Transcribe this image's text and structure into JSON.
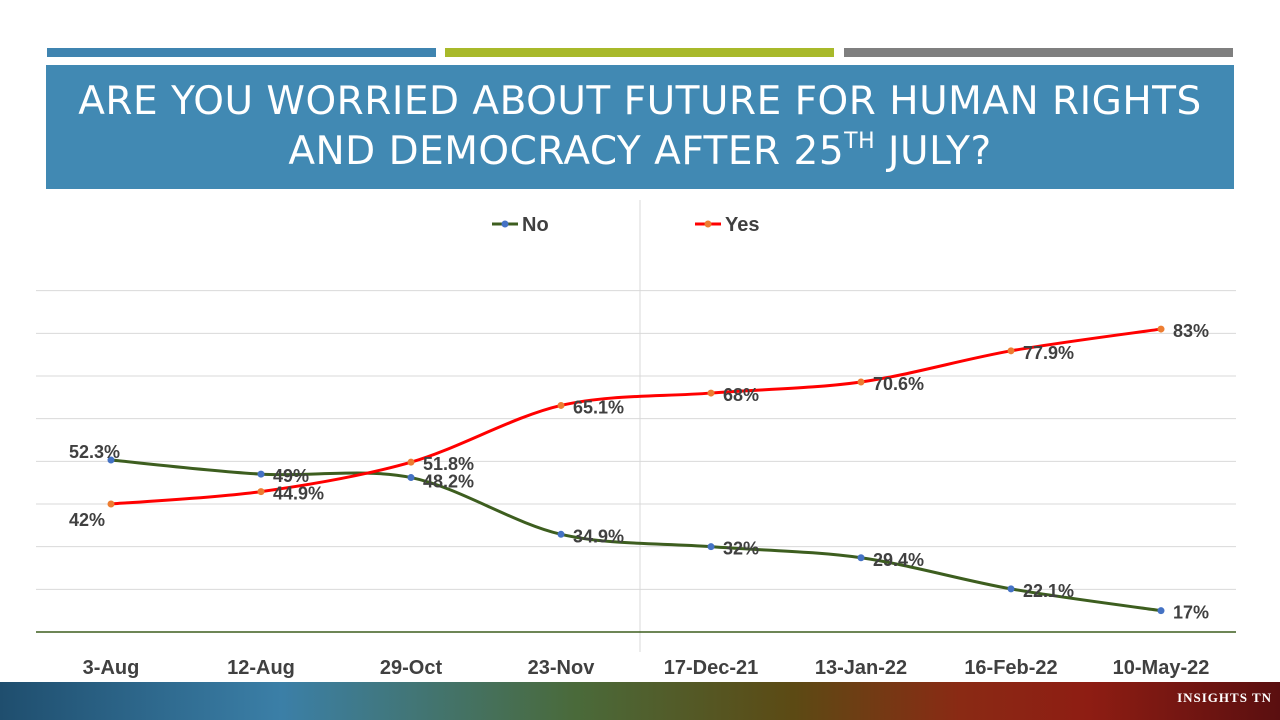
{
  "slide": {
    "title_main": "ARE YOU WORRIED ABOUT FUTURE FOR HUMAN RIGHTS AND DEMOCRACY AFTER 25",
    "title_sup": "TH",
    "title_end": " JULY?",
    "footer": "INSIGHTS  TN"
  },
  "chart_data": {
    "type": "line",
    "title": "ARE YOU WORRIED ABOUT FUTURE FOR HUMAN RIGHTS AND DEMOCRACY AFTER 25TH JULY?",
    "categories": [
      "3-Aug",
      "12-Aug",
      "29-Oct",
      "23-Nov",
      "17-Dec-21",
      "13-Jan-22",
      "16-Feb-22",
      "10-May-22"
    ],
    "series": [
      {
        "name": "No",
        "color": "#3d5e1f",
        "marker_color": "#4472c4",
        "values": [
          52.3,
          49,
          48.2,
          34.9,
          32,
          29.4,
          22.1,
          17
        ],
        "labels": [
          "52.3%",
          "49%",
          "48.2%",
          "34.9%",
          "32%",
          "29.4%",
          "22.1%",
          "17%"
        ]
      },
      {
        "name": "Yes",
        "color": "#ff0000",
        "marker_color": "#ed7d31",
        "values": [
          42,
          44.9,
          51.8,
          65.1,
          68,
          70.6,
          77.9,
          83
        ],
        "labels": [
          "42%",
          "44.9%",
          "51.8%",
          "65.1%",
          "68%",
          "70.6%",
          "77.9%",
          "83%"
        ]
      }
    ],
    "ylim": [
      12,
      102
    ],
    "gridlines": [
      22,
      32,
      42,
      52,
      62,
      72,
      82,
      92
    ],
    "xlabel": "",
    "ylabel": "",
    "legend_position": "top-center",
    "grid": true
  }
}
